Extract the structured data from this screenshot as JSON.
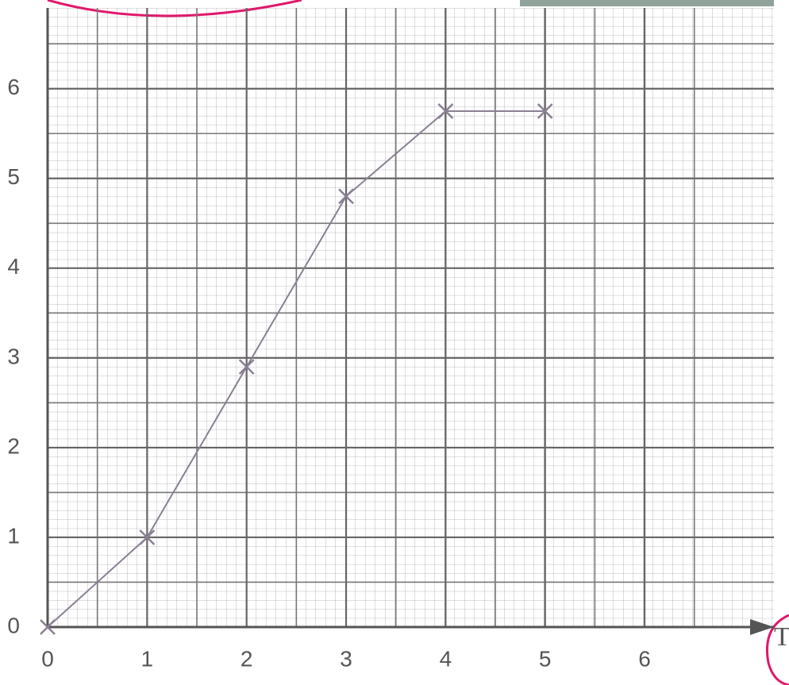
{
  "chart_data": {
    "type": "line",
    "x_label": "T",
    "x": [
      0,
      1,
      2,
      3,
      4,
      5
    ],
    "series": [
      {
        "color": "#8a7f92",
        "values": [
          0,
          1,
          2.9,
          4.8,
          5.75,
          5.75
        ]
      }
    ],
    "xlim": [
      0,
      7.3
    ],
    "ylim": [
      0,
      6.9
    ],
    "xticks": [
      0,
      1,
      2,
      3,
      4,
      5,
      6
    ],
    "yticks": [
      0,
      1,
      2,
      3,
      4,
      5,
      6
    ],
    "grid": true
  }
}
